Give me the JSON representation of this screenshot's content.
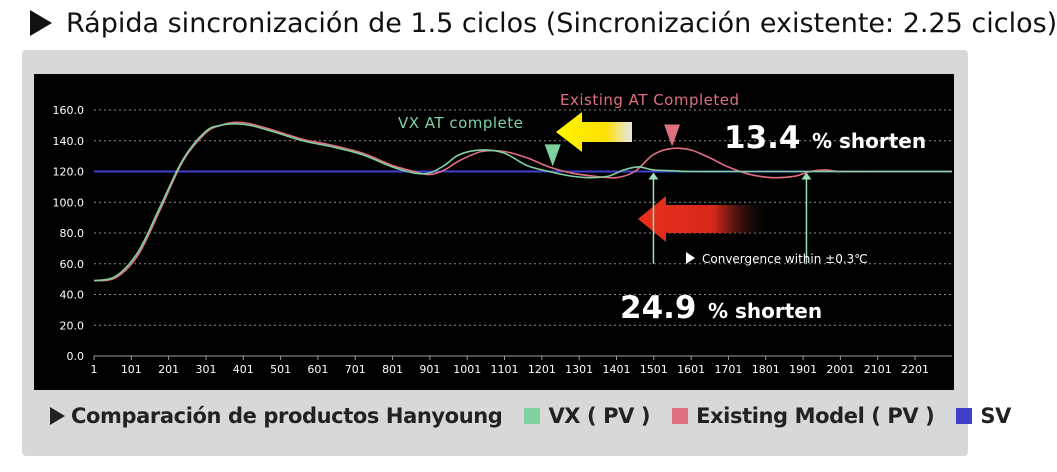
{
  "header": {
    "title": "Rápida sincronización de 1.5 ciclos (Sincronización existente: 2.25 ciclos)"
  },
  "legend": {
    "title": "Comparación de productos Hanyoung",
    "items": [
      {
        "label": "VX ( PV )",
        "color": "#7fd1a0"
      },
      {
        "label": "Existing Model ( PV )",
        "color": "#e07080"
      },
      {
        "label": "SV",
        "color": "#4040cc"
      }
    ]
  },
  "annotations": {
    "vx_complete": "VX AT complete",
    "existing_complete": "Existing AT Completed",
    "shorten1_value": "13.4",
    "shorten1_unit": "% shorten",
    "convergence": "Convergence within  ±0.3℃",
    "shorten2_value": "24.9",
    "shorten2_unit": "% shorten"
  },
  "chart_data": {
    "type": "line",
    "ylim": [
      0,
      160
    ],
    "xlim": [
      1,
      2300
    ],
    "ytick_labels": [
      "0.0",
      "20.0",
      "40.0",
      "60.0",
      "80.0",
      "100.0",
      "120.0",
      "140.0",
      "160.0"
    ],
    "xtick_labels": [
      "1",
      "101",
      "201",
      "301",
      "401",
      "501",
      "601",
      "701",
      "801",
      "901",
      "1001",
      "1101",
      "1201",
      "1301",
      "1401",
      "1501",
      "1601",
      "1701",
      "1801",
      "1901",
      "2001",
      "2101",
      "2201"
    ],
    "series": [
      {
        "name": "VX ( PV )",
        "color": "#7fd1a0",
        "x": [
          1,
          60,
          120,
          180,
          240,
          300,
          340,
          380,
          420,
          480,
          560,
          640,
          720,
          800,
          860,
          900,
          940,
          980,
          1040,
          1100,
          1160,
          1220,
          1280,
          1330,
          1380,
          1420,
          1460,
          1500,
          1550,
          1600,
          1700,
          1800,
          1900,
          2000,
          2100,
          2200,
          2300
        ],
        "y": [
          49,
          52,
          68,
          98,
          128,
          146,
          150,
          151,
          150,
          146,
          140,
          136,
          131,
          123,
          119,
          119,
          124,
          131,
          134,
          132,
          124,
          120,
          117,
          116,
          117,
          121,
          123,
          121,
          120.5,
          120,
          120,
          120,
          120,
          120,
          120,
          120,
          120
        ]
      },
      {
        "name": "Existing Model ( PV )",
        "color": "#e07080",
        "x": [
          1,
          60,
          120,
          180,
          240,
          300,
          340,
          380,
          420,
          480,
          560,
          640,
          720,
          800,
          860,
          900,
          940,
          980,
          1040,
          1100,
          1160,
          1220,
          1280,
          1340,
          1400,
          1450,
          1500,
          1550,
          1600,
          1650,
          1700,
          1760,
          1820,
          1880,
          1920,
          1960,
          2000,
          2100,
          2200,
          2300
        ],
        "y": [
          49,
          51,
          66,
          96,
          127,
          145,
          150,
          152,
          151,
          147,
          141,
          137,
          132,
          124,
          120,
          118,
          121,
          127,
          133,
          133,
          129,
          123,
          119,
          117,
          116,
          120,
          131,
          135,
          134,
          129,
          123,
          118,
          116,
          117,
          120,
          121,
          120,
          120,
          120,
          120
        ]
      },
      {
        "name": "SV",
        "color": "#4040cc",
        "x": [
          1,
          2300
        ],
        "y": [
          120,
          120
        ]
      }
    ],
    "markers": [
      {
        "label": "VX AT complete",
        "x": 1230,
        "y": 122,
        "color": "#7fd1a0"
      },
      {
        "label": "Existing AT Completed",
        "x": 1550,
        "y": 135,
        "color": "#e07080"
      }
    ],
    "convergence_marks": [
      {
        "x": 1500,
        "y": 120
      },
      {
        "x": 1910,
        "y": 120
      }
    ]
  }
}
